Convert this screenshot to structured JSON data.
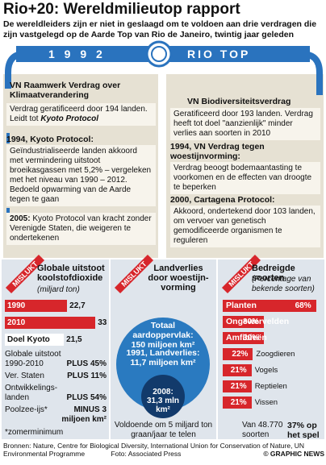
{
  "header": {
    "title": "Rio+20: Wereldmilieutop rapport",
    "subtitle": "De wereldleiders zijn er niet in geslaagd om te voldoen aan drie verdragen die zijn vastgelegd op de Aarde Top van Rio de Janeiro, twintig jaar geleden"
  },
  "banner": {
    "year": "1 9 9 2",
    "label": "RIO TOP"
  },
  "left": {
    "heading": "VN Raamwerk Verdrag over Klimaatverandering",
    "ratified": "Verdrag geratificeerd door 194 landen. Leidt tot",
    "ratified_em": "Kyoto Protocol",
    "events": [
      {
        "title": "1994, Kyoto Protocol:",
        "text": "Geïndustrialiseerde landen akkoord met vermindering uitstoot broeikasgassen met 5,2% – vergeleken met het niveau van 1990 – 2012. Bedoeld opwarming van de Aarde tegen te gaan"
      },
      {
        "title": "2005:",
        "text": "Kyoto Protocol van kracht zonder Verenigde Staten, die weigeren te ondertekenen"
      }
    ]
  },
  "right": {
    "heading": "VN Biodiversiteitsverdrag",
    "ratified": "Geratificeerd door 193 landen. Verdrag heeft tot doel \"aanzienlijk\" minder verlies aan soorten in 2010",
    "events": [
      {
        "title": "1994, VN Verdrag tegen woestijnvorming:",
        "text": "Verdrag beoogt bodemaantasting te voorkomen en de effecten van droogte te beperken"
      },
      {
        "title": "2000, Cartagena Protocol:",
        "text": "Akkoord, ondertekend door 103 landen, om vervoer van genetisch gemodificeerde organismen te reguleren"
      }
    ]
  },
  "panels": [
    {
      "badge": "MISLUKT",
      "title": "Globale uitstoot koolstofdioxide",
      "subtitle": "(miljard ton)",
      "color": "#d7262b",
      "categories": [
        "1990",
        "2010",
        "Doel Kyoto"
      ],
      "values": [
        22.7,
        33,
        21.5
      ],
      "value_labels": [
        "22,7",
        "33",
        "21,5"
      ],
      "stats": [
        {
          "label": "Globale uitstoot 1990-2010",
          "value": "PLUS 45%"
        },
        {
          "label": "Ver. Staten",
          "value": "PLUS 11%"
        },
        {
          "label": "Ontwikkelings-landen",
          "value": "PLUS 54%"
        },
        {
          "label": "Poolzee-ijs*",
          "value": "MINUS 3 miljoen km²"
        }
      ],
      "note": "*zomerminimum"
    },
    {
      "badge": "MISLUKT",
      "title": "Landverlies door woestijn-vorming",
      "total_label": "Totaal aardoppervlak:",
      "total": "150 miljoen km²",
      "loss1991_label": "1991, Landverlies:",
      "loss1991": "11,7 miljoen km²",
      "loss2008_label": "2008:",
      "loss2008": "31,3 mln km²",
      "note": "Voldoende om 5 miljard ton graan/jaar te telen"
    },
    {
      "badge": "MISLUKT",
      "title": "Bedreigde soorten",
      "subtitle": "(Percentage van bekende soorten)",
      "color": "#d7262b",
      "categories": [
        "Planten",
        "Ongewervelden",
        "Amfibieën",
        "Zoogdieren",
        "Vogels",
        "Reptielen",
        "Vissen"
      ],
      "values": [
        68,
        30,
        30,
        22,
        21,
        21,
        21
      ],
      "value_labels": [
        "68%",
        "30%",
        "30%",
        "22%",
        "21%",
        "21%",
        "21%"
      ],
      "total": "Van 48.770 soorten",
      "at_risk": "37% op het spel"
    }
  ],
  "footer": {
    "sources": "Bronnen: Nature, Centre for Biological Diversity, International Union for Conservation of Nature, UN Environmental Programme",
    "photo": "Foto: Associated Press",
    "credit": "© GRAPHIC NEWS"
  }
}
